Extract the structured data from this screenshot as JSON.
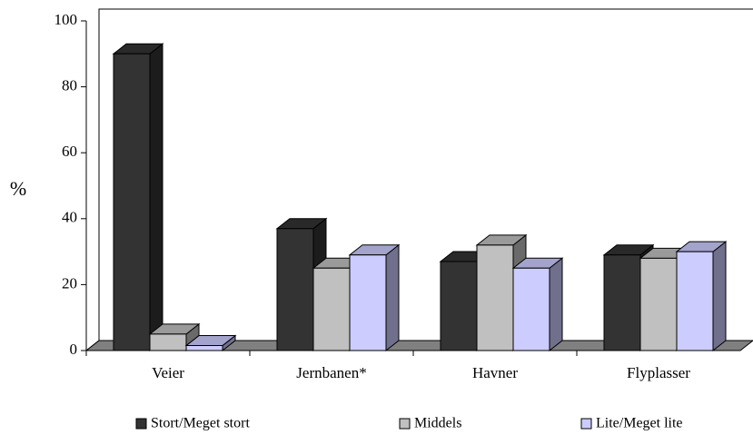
{
  "chart_data": {
    "type": "bar3d",
    "y_label": "%",
    "categories": [
      "Veier",
      "Jernbanen*",
      "Havner",
      "Flyplasser"
    ],
    "series": [
      {
        "name": "Stort/Meget stort",
        "color": "#333333",
        "values": [
          90,
          37,
          27,
          29
        ]
      },
      {
        "name": "Middels",
        "color": "#c0c0c0",
        "values": [
          5,
          25,
          32,
          28
        ]
      },
      {
        "name": "Lite/Meget lite",
        "color": "#ccccff",
        "values": [
          1.5,
          29,
          25,
          30
        ]
      }
    ],
    "ylim": [
      0,
      100
    ],
    "yticks": [
      0,
      20,
      40,
      60,
      80,
      100
    ],
    "legend": "bottom"
  }
}
